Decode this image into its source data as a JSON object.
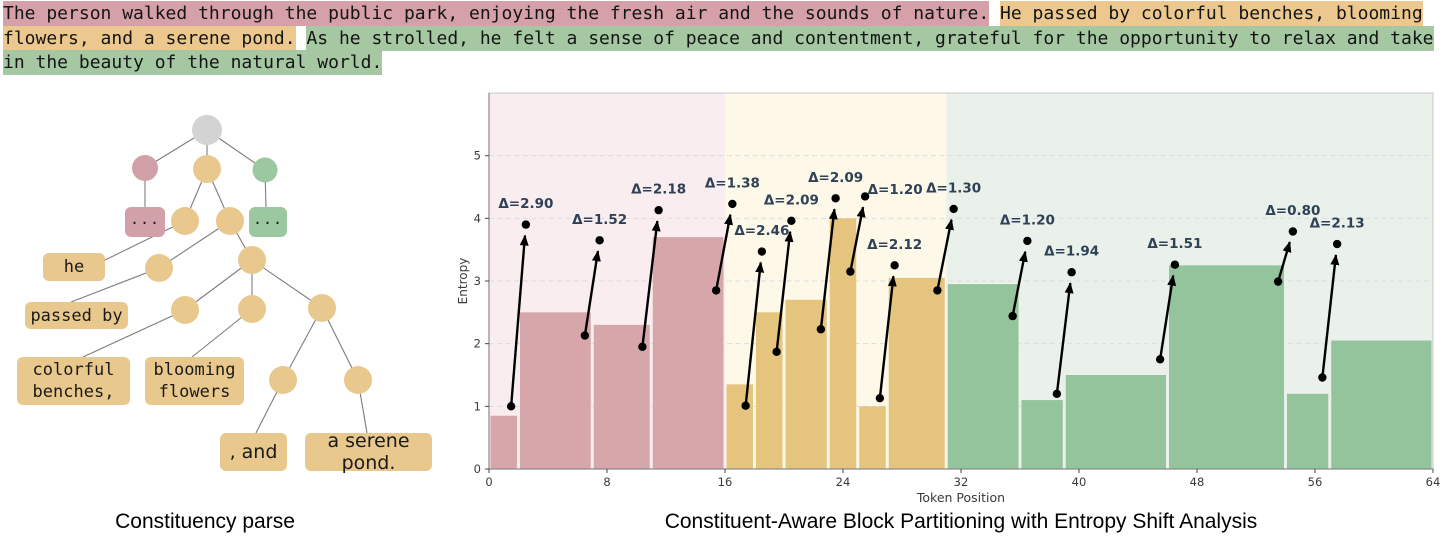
{
  "header_text": {
    "segments": [
      {
        "label": "sentence-1",
        "text": "The person walked through the public park, enjoying the fresh air and the sounds of nature.",
        "highlight_color": "#d5a0a7"
      },
      {
        "label": "sentence-2",
        "text": "He passed by colorful benches, blooming flowers, and a serene pond.",
        "highlight_color": "#ecc88e"
      },
      {
        "label": "sentence-3",
        "text": "As he strolled, he felt a sense of peace and contentment, grateful for the opportunity to relax and take in the beauty of the natural world.",
        "highlight_color": "#a5c8a2"
      }
    ]
  },
  "parse_tree": {
    "caption": "Constituency parse",
    "colors": {
      "root": "#d3d3d3",
      "sentence1": "#d2a0a8",
      "sentence2": "#e8c88c",
      "sentence3": "#9bc8a0",
      "phrase": "#e8c88c",
      "edge": "#7d7d7d"
    },
    "nodes": [
      {
        "id": "root",
        "kind": "root"
      },
      {
        "id": "s1",
        "kind": "sentence1"
      },
      {
        "id": "s2",
        "kind": "sentence2"
      },
      {
        "id": "s3",
        "kind": "sentence3"
      },
      {
        "id": "np",
        "kind": "phrase"
      },
      {
        "id": "vp",
        "kind": "phrase"
      },
      {
        "id": "v",
        "kind": "phrase"
      },
      {
        "id": "obj",
        "kind": "phrase"
      },
      {
        "id": "np1",
        "kind": "phrase"
      },
      {
        "id": "np2",
        "kind": "phrase"
      },
      {
        "id": "np3",
        "kind": "phrase"
      },
      {
        "id": "cc",
        "kind": "phrase"
      },
      {
        "id": "np4",
        "kind": "phrase"
      }
    ],
    "leaves": [
      {
        "id": "pink-ellipsis",
        "text": "...",
        "kind": "sentence1",
        "font": "dots"
      },
      {
        "id": "green-ellipsis",
        "text": "...",
        "kind": "sentence3",
        "font": "dots"
      },
      {
        "id": "he",
        "text": "he",
        "kind": "phrase",
        "font": "mono"
      },
      {
        "id": "passed-by",
        "text": "passed by",
        "kind": "phrase",
        "font": "mono"
      },
      {
        "id": "colorful-benches",
        "text": "colorful\nbenches,",
        "kind": "phrase",
        "font": "mono"
      },
      {
        "id": "blooming-flowers",
        "text": "blooming\nflowers",
        "kind": "phrase",
        "font": "mono"
      },
      {
        "id": "comma-and",
        "text": ", and",
        "kind": "phrase",
        "font": "sans"
      },
      {
        "id": "serene-pond",
        "text": "a serene pond.",
        "kind": "phrase",
        "font": "sans"
      }
    ],
    "edges": [
      [
        "root",
        "s1"
      ],
      [
        "root",
        "s2"
      ],
      [
        "root",
        "s3"
      ],
      [
        "s1",
        "pink-ellipsis"
      ],
      [
        "s2",
        "np"
      ],
      [
        "s2",
        "vp"
      ],
      [
        "s3",
        "green-ellipsis"
      ],
      [
        "np",
        "he"
      ],
      [
        "vp",
        "v"
      ],
      [
        "vp",
        "obj"
      ],
      [
        "v",
        "passed-by"
      ],
      [
        "obj",
        "np1"
      ],
      [
        "obj",
        "np2"
      ],
      [
        "obj",
        "np3"
      ],
      [
        "np1",
        "colorful-benches"
      ],
      [
        "np2",
        "blooming-flowers"
      ],
      [
        "np3",
        "cc"
      ],
      [
        "np3",
        "np4"
      ],
      [
        "cc",
        "comma-and"
      ],
      [
        "np4",
        "serene-pond"
      ]
    ]
  },
  "chart_data": {
    "type": "bar",
    "title": "Constituent-Aware Block Partitioning with Entropy Shift Analysis",
    "xlabel": "Token Position",
    "ylabel": "Entropy",
    "xlim": [
      0,
      64
    ],
    "ylim": [
      0,
      6
    ],
    "x_ticks": [
      0,
      8,
      16,
      24,
      32,
      40,
      48,
      56,
      64
    ],
    "y_ticks": [
      0,
      1,
      2,
      3,
      4,
      5
    ],
    "grid": "horizontal dashed at y=1..5",
    "legend": "none",
    "regions": [
      {
        "segment": "sentence-1",
        "start": 0,
        "end": 16,
        "bar_color": "#d6a6ab",
        "bg_color": "#f9edf0"
      },
      {
        "segment": "sentence-2",
        "start": 16,
        "end": 31,
        "bar_color": "#e5c47d",
        "bg_color": "#fdf8e8"
      },
      {
        "segment": "sentence-3",
        "start": 31,
        "end": 64,
        "bar_color": "#94c49c",
        "bg_color": "#eaf1ea"
      }
    ],
    "blocks": [
      {
        "start": 0,
        "end": 2,
        "entropy": 0.85
      },
      {
        "start": 2,
        "end": 7,
        "entropy": 2.5
      },
      {
        "start": 7,
        "end": 11,
        "entropy": 2.3
      },
      {
        "start": 11,
        "end": 16,
        "entropy": 3.7
      },
      {
        "start": 16,
        "end": 18,
        "entropy": 1.35
      },
      {
        "start": 18,
        "end": 20,
        "entropy": 2.5
      },
      {
        "start": 20,
        "end": 23,
        "entropy": 2.7
      },
      {
        "start": 23,
        "end": 25,
        "entropy": 4.0
      },
      {
        "start": 25,
        "end": 27,
        "entropy": 1.0
      },
      {
        "start": 27,
        "end": 31,
        "entropy": 3.05
      },
      {
        "start": 31,
        "end": 36,
        "entropy": 2.95
      },
      {
        "start": 36,
        "end": 39,
        "entropy": 1.1
      },
      {
        "start": 39,
        "end": 46,
        "entropy": 1.5
      },
      {
        "start": 46,
        "end": 54,
        "entropy": 3.25
      },
      {
        "start": 54,
        "end": 57,
        "entropy": 1.2
      },
      {
        "start": 57,
        "end": 64,
        "entropy": 2.05
      }
    ],
    "arrows": [
      {
        "boundary": 2,
        "from_token": 1.5,
        "from_entropy": 1.0,
        "to_token": 2.5,
        "to_entropy": 3.9,
        "delta": 2.9,
        "label": "Δ=2.90"
      },
      {
        "boundary": 7,
        "from_token": 6.5,
        "from_entropy": 2.13,
        "to_token": 7.5,
        "to_entropy": 3.65,
        "delta": 1.52,
        "label": "Δ=1.52"
      },
      {
        "boundary": 11,
        "from_token": 10.4,
        "from_entropy": 1.95,
        "to_token": 11.5,
        "to_entropy": 4.13,
        "delta": 2.18,
        "label": "Δ=2.18"
      },
      {
        "boundary": 16,
        "from_token": 15.4,
        "from_entropy": 2.85,
        "to_token": 16.5,
        "to_entropy": 4.23,
        "delta": 1.38,
        "label": "Δ=1.38"
      },
      {
        "boundary": 18,
        "from_token": 17.4,
        "from_entropy": 1.01,
        "to_token": 18.5,
        "to_entropy": 3.47,
        "delta": 2.46,
        "label": "Δ=2.46"
      },
      {
        "boundary": 20,
        "from_token": 19.5,
        "from_entropy": 1.87,
        "to_token": 20.5,
        "to_entropy": 3.96,
        "delta": 2.09,
        "label": "Δ=2.09"
      },
      {
        "boundary": 23,
        "from_token": 22.5,
        "from_entropy": 2.23,
        "to_token": 23.5,
        "to_entropy": 4.32,
        "delta": 2.09,
        "label": "Δ=2.09"
      },
      {
        "boundary": 25,
        "from_token": 24.5,
        "from_entropy": 3.15,
        "to_token": 25.5,
        "to_entropy": 4.35,
        "delta": 1.2,
        "label": "Δ=1.20",
        "label_dx": 30,
        "label_dy": 14
      },
      {
        "boundary": 27,
        "from_token": 26.5,
        "from_entropy": 1.13,
        "to_token": 27.5,
        "to_entropy": 3.25,
        "delta": 2.12,
        "label": "Δ=2.12"
      },
      {
        "boundary": 31,
        "from_token": 30.4,
        "from_entropy": 2.85,
        "to_token": 31.5,
        "to_entropy": 4.15,
        "delta": 1.3,
        "label": "Δ=1.30"
      },
      {
        "boundary": 36,
        "from_token": 35.5,
        "from_entropy": 2.44,
        "to_token": 36.5,
        "to_entropy": 3.64,
        "delta": 1.2,
        "label": "Δ=1.20"
      },
      {
        "boundary": 39,
        "from_token": 38.5,
        "from_entropy": 1.2,
        "to_token": 39.5,
        "to_entropy": 3.14,
        "delta": 1.94,
        "label": "Δ=1.94"
      },
      {
        "boundary": 46,
        "from_token": 45.5,
        "from_entropy": 1.75,
        "to_token": 46.5,
        "to_entropy": 3.26,
        "delta": 1.51,
        "label": "Δ=1.51"
      },
      {
        "boundary": 54,
        "from_token": 53.5,
        "from_entropy": 2.99,
        "to_token": 54.5,
        "to_entropy": 3.79,
        "delta": 0.8,
        "label": "Δ=0.80"
      },
      {
        "boundary": 57,
        "from_token": 56.5,
        "from_entropy": 1.46,
        "to_token": 57.5,
        "to_entropy": 3.59,
        "delta": 2.13,
        "label": "Δ=2.13"
      }
    ],
    "annotation_color": "#2e4156",
    "arrow_color": "#000000",
    "axis_text_color": "#3a3a3a"
  }
}
